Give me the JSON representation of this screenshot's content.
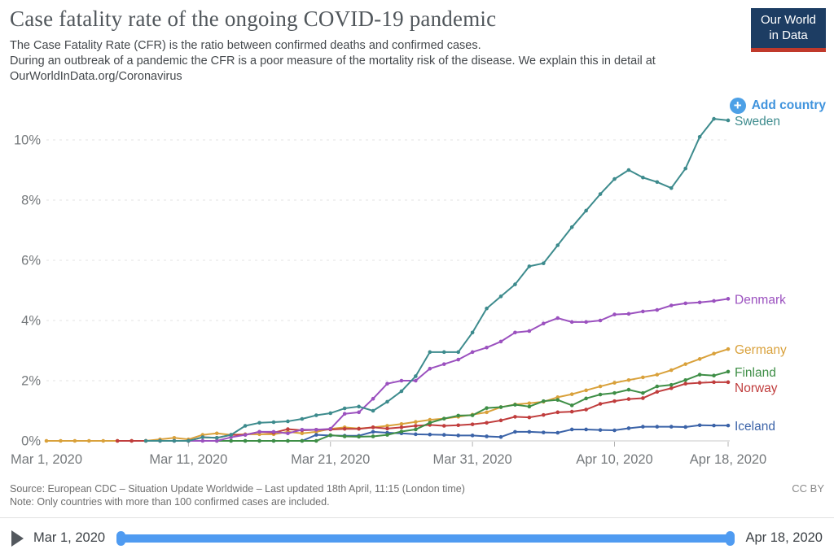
{
  "header": {
    "title": "Case fatality rate of the ongoing COVID-19 pandemic",
    "subtitle_line1": "The Case Fatality Rate (CFR) is the ratio between confirmed deaths and confirmed cases.",
    "subtitle_rest": "During an outbreak of a pandemic the CFR is a poor measure of the mortality risk of the disease. We explain this in detail at OurWorldInData.org/Coronavirus",
    "logo": {
      "line1": "Our World",
      "line2": "in Data",
      "bg_color": "#1d3d63",
      "bar_color": "#c0392b"
    }
  },
  "controls": {
    "add_country_label": "Add country",
    "accent_color": "#3f93dd",
    "icon_color": "#4da0e6"
  },
  "chart_data": {
    "type": "line",
    "title": "Case fatality rate of the ongoing COVID-19 pandemic",
    "xlabel": "",
    "ylabel": "",
    "unit": "%",
    "ylim": [
      0,
      10.8
    ],
    "x_range": [
      "Mar 1, 2020",
      "Apr 18, 2020"
    ],
    "grid": "horizontal-dashed",
    "legend_position": "end-of-line-labels",
    "y_ticks": [
      {
        "label": "0%",
        "value": 0
      },
      {
        "label": "2%",
        "value": 2
      },
      {
        "label": "4%",
        "value": 4
      },
      {
        "label": "6%",
        "value": 6
      },
      {
        "label": "8%",
        "value": 8
      },
      {
        "label": "10%",
        "value": 10
      }
    ],
    "x_ticks": [
      {
        "label": "Mar 1, 2020",
        "day": 0,
        "tick": false
      },
      {
        "label": "Mar 11, 2020",
        "day": 10,
        "tick": true
      },
      {
        "label": "Mar 21, 2020",
        "day": 20,
        "tick": true
      },
      {
        "label": "Mar 31, 2020",
        "day": 30,
        "tick": true
      },
      {
        "label": "Apr 10, 2020",
        "day": 40,
        "tick": true
      },
      {
        "label": "Apr 18, 2020",
        "day": 48,
        "tick": true
      }
    ],
    "series": [
      {
        "name": "Germany",
        "color": "#d9a13b",
        "start_date": "Mar 1, 2020",
        "start_day": 0,
        "values": [
          0,
          0,
          0,
          0,
          0,
          0,
          0,
          0,
          0.05,
          0.1,
          0.05,
          0.2,
          0.25,
          0.2,
          0.22,
          0.22,
          0.22,
          0.3,
          0.25,
          0.3,
          0.4,
          0.45,
          0.41,
          0.45,
          0.5,
          0.56,
          0.63,
          0.7,
          0.74,
          0.8,
          0.87,
          0.95,
          1.12,
          1.21,
          1.25,
          1.3,
          1.45,
          1.55,
          1.68,
          1.81,
          1.93,
          2.02,
          2.11,
          2.2,
          2.35,
          2.55,
          2.72,
          2.9,
          3.05
        ]
      },
      {
        "name": "Iceland",
        "color": "#3b63a8",
        "start_date": "Mar 14, 2020",
        "start_day": 13,
        "values": [
          0,
          0,
          0,
          0,
          0,
          0,
          0.2,
          0.18,
          0.17,
          0.17,
          0.3,
          0.27,
          0.25,
          0.22,
          0.21,
          0.2,
          0.18,
          0.18,
          0.15,
          0.13,
          0.3,
          0.3,
          0.28,
          0.27,
          0.38,
          0.38,
          0.36,
          0.35,
          0.42,
          0.47,
          0.47,
          0.47,
          0.46,
          0.52,
          0.51,
          0.51
        ]
      },
      {
        "name": "Norway",
        "color": "#c03d3d",
        "start_date": "Mar 6, 2020",
        "start_day": 5,
        "values": [
          0,
          0,
          0,
          0,
          0,
          0,
          0.12,
          0.1,
          0.2,
          0.2,
          0.3,
          0.27,
          0.39,
          0.35,
          0.37,
          0.38,
          0.4,
          0.4,
          0.45,
          0.41,
          0.45,
          0.5,
          0.53,
          0.5,
          0.52,
          0.55,
          0.6,
          0.68,
          0.8,
          0.78,
          0.86,
          0.95,
          0.97,
          1.04,
          1.23,
          1.32,
          1.39,
          1.42,
          1.63,
          1.75,
          1.9,
          1.93,
          1.95,
          1.95
        ]
      },
      {
        "name": "Finland",
        "color": "#3e8e46",
        "start_date": "Mar 13, 2020",
        "start_day": 12,
        "values": [
          0,
          0,
          0,
          0,
          0,
          0,
          0,
          0,
          0.19,
          0.15,
          0.14,
          0.15,
          0.2,
          0.31,
          0.38,
          0.6,
          0.74,
          0.84,
          0.85,
          1.09,
          1.12,
          1.2,
          1.14,
          1.32,
          1.36,
          1.18,
          1.41,
          1.54,
          1.59,
          1.7,
          1.59,
          1.81,
          1.86,
          2.02,
          2.2,
          2.17,
          2.3
        ]
      },
      {
        "name": "Denmark",
        "color": "#9b51bf",
        "start_date": "Mar 9, 2020",
        "start_day": 8,
        "values": [
          0,
          0,
          0,
          0,
          0,
          0.12,
          0.2,
          0.3,
          0.3,
          0.25,
          0.37,
          0.37,
          0.4,
          0.9,
          0.95,
          1.4,
          1.9,
          2.0,
          2.0,
          2.4,
          2.55,
          2.7,
          2.95,
          3.1,
          3.3,
          3.6,
          3.65,
          3.9,
          4.08,
          3.95,
          3.95,
          4.0,
          4.2,
          4.22,
          4.3,
          4.35,
          4.5,
          4.57,
          4.6,
          4.65,
          4.72
        ]
      },
      {
        "name": "Sweden",
        "color": "#3d8b8d",
        "start_date": "Mar 8, 2020",
        "start_day": 7,
        "values": [
          0,
          0,
          0,
          0,
          0.12,
          0.1,
          0.2,
          0.5,
          0.6,
          0.62,
          0.65,
          0.73,
          0.85,
          0.92,
          1.08,
          1.14,
          1.0,
          1.3,
          1.65,
          2.15,
          2.95,
          2.95,
          2.95,
          3.6,
          4.4,
          4.8,
          5.2,
          5.8,
          5.9,
          6.5,
          7.1,
          7.65,
          8.2,
          8.7,
          9.0,
          8.75,
          8.6,
          8.4,
          9.05,
          10.1,
          10.7,
          10.65
        ]
      }
    ]
  },
  "footer": {
    "source": "Source: European CDC – Situation Update Worldwide – Last updated 18th April, 11:15 (London time)",
    "note": "Note: Only countries with more than 100 confirmed cases are included.",
    "license": "CC BY"
  },
  "timeline": {
    "start_label": "Mar 1, 2020",
    "end_label": "Apr 18, 2020",
    "bar_color": "#4f9bf1"
  }
}
